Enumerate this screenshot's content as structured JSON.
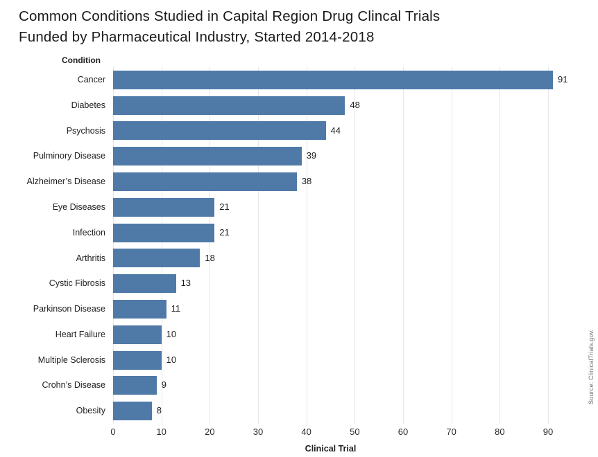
{
  "title": {
    "line1": "Common Conditions Studied in Capital Region Drug Clincal Trials",
    "line2": "Funded by Pharmaceutical Industry, Started 2014-2018"
  },
  "source_note": "Source: ClinicalTrials.gov.",
  "chart_data": {
    "type": "bar",
    "orientation": "horizontal",
    "title": "Common Conditions Studied in Capital Region Drug Clincal Trials Funded by Pharmaceutical Industry, Started 2014-2018",
    "category_axis_label": "Condition",
    "xlabel": "Clinical Trial",
    "categories": [
      "Cancer",
      "Diabetes",
      "Psychosis",
      "Pulminory Disease",
      "Alzheimer’s Disease",
      "Eye Diseases",
      "Infection",
      "Arthritis",
      "Cystic Fibrosis",
      "Parkinson Disease",
      "Heart Failure",
      "Multiple Sclerosis",
      "Crohn’s Disease",
      "Obesity"
    ],
    "values": [
      91,
      48,
      44,
      39,
      38,
      21,
      21,
      18,
      13,
      11,
      10,
      10,
      9,
      8
    ],
    "xticks": [
      0,
      10,
      20,
      30,
      40,
      50,
      60,
      70,
      80,
      90
    ],
    "xlim": [
      0,
      96
    ],
    "grid": true,
    "legend": "none",
    "bar_color": "#4f7aa8",
    "text_color": "#1e1e1e",
    "grid_color": "#e6e6e6"
  }
}
